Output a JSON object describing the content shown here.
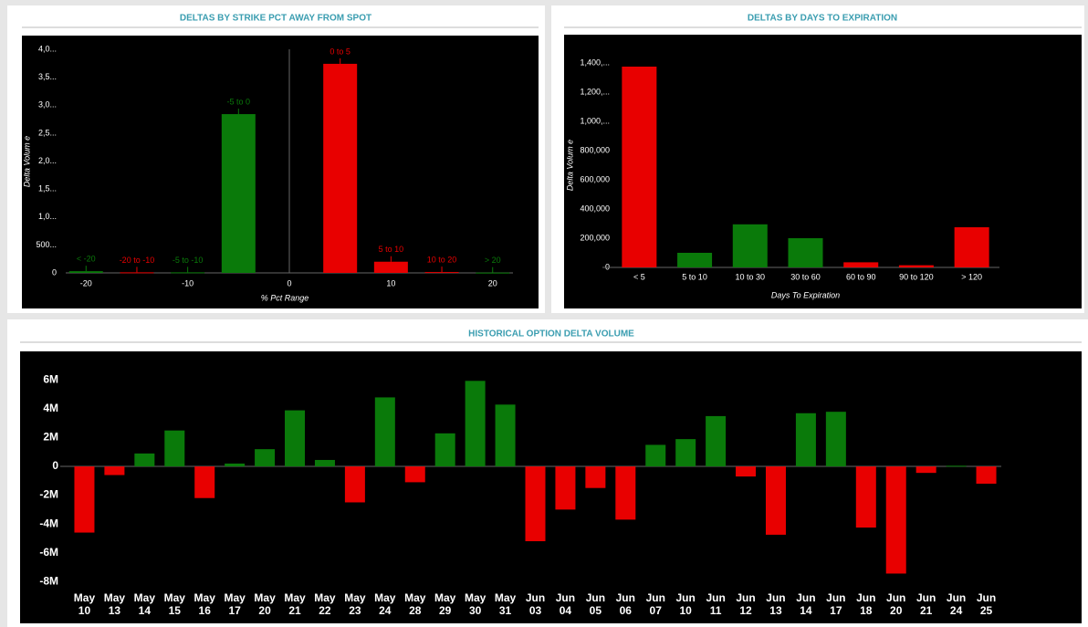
{
  "chart_data": [
    {
      "type": "bar",
      "title": "DELTAS BY STRIKE PCT AWAY FROM SPOT",
      "x_label": "% Pct Range",
      "y_label": "Delta Volum e",
      "x": [
        -20,
        -15,
        -10,
        -5,
        5,
        10,
        15,
        20
      ],
      "labels": [
        "< -20",
        "-20 to -10",
        "-5 to -10",
        "-5 to 0",
        "0 to 5",
        "5 to 10",
        "10 to 20",
        "> 20"
      ],
      "values": [
        30000,
        10000,
        10000,
        2840000,
        3740000,
        200000,
        15000,
        5000
      ],
      "colors": [
        "#0a7a0a",
        "#e80000",
        "#0a7a0a",
        "#0a7a0a",
        "#e80000",
        "#e80000",
        "#e80000",
        "#0a7a0a"
      ],
      "xlim": [
        -22,
        22
      ],
      "xticks": [
        -20,
        -10,
        0,
        10,
        20
      ],
      "ylim": [
        0,
        4000000
      ],
      "yticks": [
        0,
        {
          "value": 500000,
          "label": "500..."
        },
        {
          "value": 1000000,
          "label": "1,0..."
        },
        {
          "value": 1500000,
          "label": "1,5..."
        },
        {
          "value": 2000000,
          "label": "2,0..."
        },
        {
          "value": 2500000,
          "label": "2,5..."
        },
        {
          "value": 3000000,
          "label": "3,0..."
        },
        {
          "value": 3500000,
          "label": "3,5..."
        },
        {
          "value": 4000000,
          "label": "4,0..."
        }
      ]
    },
    {
      "type": "bar",
      "title": "DELTAS BY DAYS TO EXPIRATION",
      "x_label": "Days To Expiration",
      "y_label": "Delta Volum e",
      "categories": [
        "< 5",
        "5 to 10",
        "10 to 30",
        "30 to 60",
        "60 to 90",
        "90 to 120",
        "> 120"
      ],
      "values": [
        1375000,
        100000,
        295000,
        200000,
        35000,
        15000,
        275000
      ],
      "colors": [
        "#e80000",
        "#0a7a0a",
        "#0a7a0a",
        "#0a7a0a",
        "#e80000",
        "#e80000",
        "#e80000"
      ],
      "ylim": [
        0,
        1400000
      ],
      "yticks": [
        0,
        {
          "value": 200000,
          "label": "200,000"
        },
        {
          "value": 400000,
          "label": "400,000"
        },
        {
          "value": 600000,
          "label": "600,000"
        },
        {
          "value": 800000,
          "label": "800,000"
        },
        {
          "value": 1000000,
          "label": "1,000,..."
        },
        {
          "value": 1200000,
          "label": "1,200,..."
        },
        {
          "value": 1400000,
          "label": "1,400,..."
        }
      ]
    },
    {
      "type": "bar",
      "title": "HISTORICAL OPTION DELTA VOLUME",
      "categories": [
        "May 10",
        "May 13",
        "May 14",
        "May 15",
        "May 16",
        "May 17",
        "May 20",
        "May 21",
        "May 22",
        "May 23",
        "May 24",
        "May 28",
        "May 29",
        "May 30",
        "May 31",
        "Jun 03",
        "Jun 04",
        "Jun 05",
        "Jun 06",
        "Jun 07",
        "Jun 10",
        "Jun 11",
        "Jun 12",
        "Jun 13",
        "Jun 14",
        "Jun 17",
        "Jun 18",
        "Jun 20",
        "Jun 21",
        "Jun 24",
        "Jun 25"
      ],
      "values": [
        -4600000,
        -600000,
        900000,
        2500000,
        -2200000,
        200000,
        1200000,
        3900000,
        450000,
        -2500000,
        4800000,
        -1100000,
        2300000,
        5950000,
        4300000,
        -5200000,
        -3000000,
        -1500000,
        -3700000,
        1500000,
        1900000,
        3500000,
        -700000,
        -4750000,
        3700000,
        3800000,
        -4250000,
        -7450000,
        -450000,
        50000,
        -1200000
      ],
      "positive_color": "#0a7a0a",
      "negative_color": "#e80000",
      "ylim": [
        -8500000,
        8000000
      ],
      "yticks": [
        {
          "value": -8000000,
          "label": "-8M"
        },
        {
          "value": -6000000,
          "label": "-6M"
        },
        {
          "value": -4000000,
          "label": "-4M"
        },
        {
          "value": -2000000,
          "label": "-2M"
        },
        0,
        {
          "value": 2000000,
          "label": "2M"
        },
        {
          "value": 4000000,
          "label": "4M"
        },
        {
          "value": 6000000,
          "label": "6M"
        }
      ]
    }
  ]
}
